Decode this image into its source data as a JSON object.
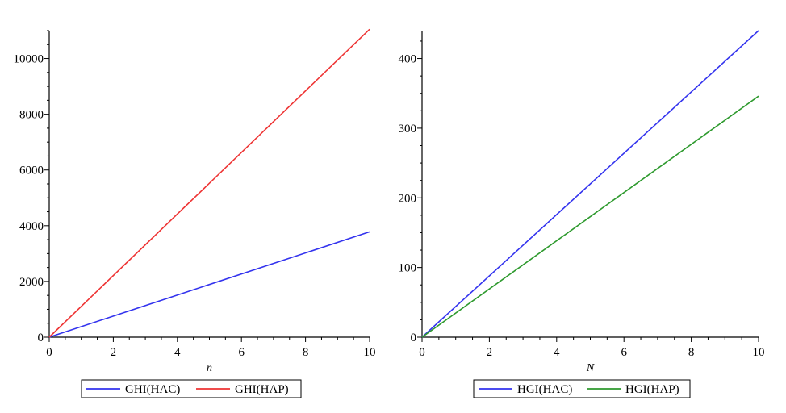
{
  "colors": {
    "blue": "#3333ee",
    "red": "#ee3333",
    "green": "#2e9a2e",
    "axis": "#000000"
  },
  "chart_data": [
    {
      "type": "line",
      "xlabel": "n",
      "ylabel": "",
      "xlim": [
        0,
        10
      ],
      "ylim": [
        0,
        11000
      ],
      "xticks": [
        0,
        2,
        4,
        6,
        8,
        10
      ],
      "yticks": [
        0,
        2000,
        4000,
        6000,
        8000,
        10000
      ],
      "grid": false,
      "legend_position": "bottom",
      "series": [
        {
          "name": "GHI(HAC)",
          "color": "blue",
          "x": [
            0,
            10
          ],
          "y": [
            0,
            3780
          ]
        },
        {
          "name": "GHI(HAP)",
          "color": "red",
          "x": [
            0,
            10
          ],
          "y": [
            0,
            11050
          ]
        }
      ]
    },
    {
      "type": "line",
      "xlabel": "N",
      "ylabel": "",
      "xlim": [
        0,
        10
      ],
      "ylim": [
        0,
        440
      ],
      "xticks": [
        0,
        2,
        4,
        6,
        8,
        10
      ],
      "yticks": [
        0,
        100,
        200,
        300,
        400
      ],
      "grid": false,
      "legend_position": "bottom",
      "series": [
        {
          "name": "HGI(HAC)",
          "color": "blue",
          "x": [
            0,
            10
          ],
          "y": [
            0,
            440
          ]
        },
        {
          "name": "HGI(HAP)",
          "color": "green",
          "x": [
            0,
            10
          ],
          "y": [
            0,
            346
          ]
        }
      ]
    }
  ]
}
